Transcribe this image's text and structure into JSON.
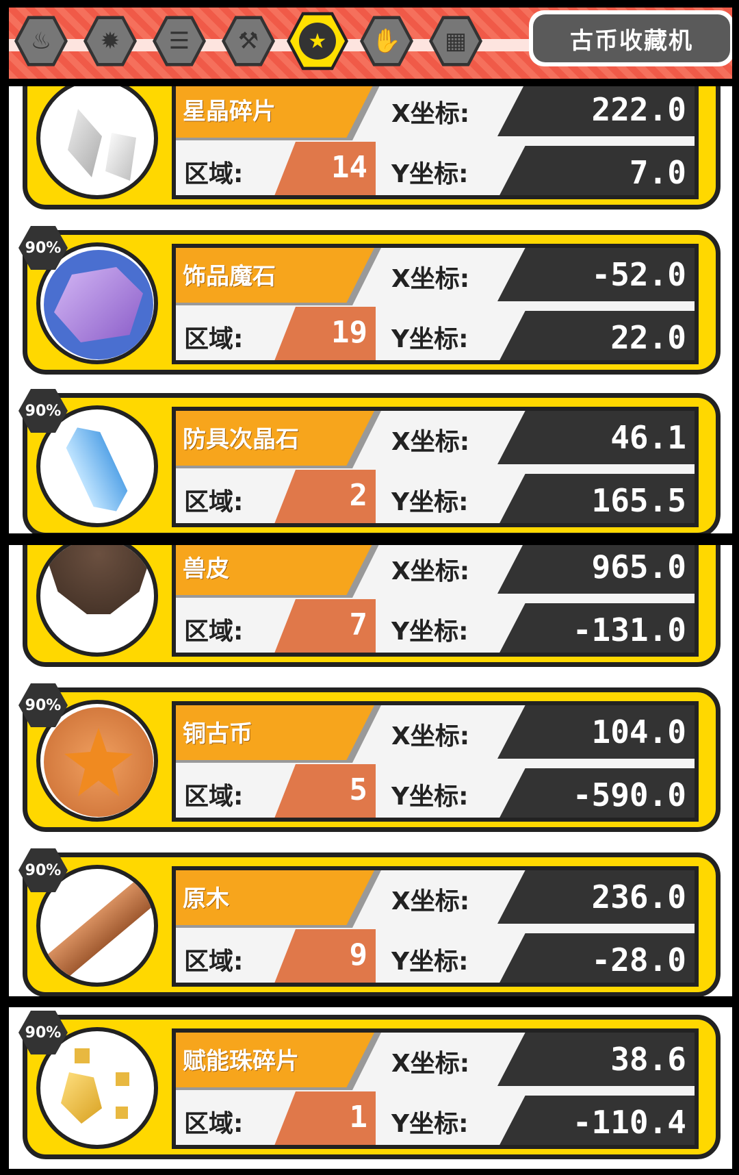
{
  "header": {
    "tabs": [
      {
        "icon": "flame-icon",
        "glyph": "♨",
        "active": false
      },
      {
        "icon": "fire-burst-icon",
        "glyph": "✹",
        "active": false
      },
      {
        "icon": "coins-icon",
        "glyph": "☰",
        "active": false
      },
      {
        "icon": "hammer-icon",
        "glyph": "⚒",
        "active": false
      },
      {
        "icon": "star-icon",
        "glyph": "★",
        "active": true
      },
      {
        "icon": "glove-icon",
        "glyph": "✋",
        "active": false
      },
      {
        "icon": "grid-icon",
        "glyph": "▦",
        "active": false
      }
    ],
    "title": "古币收藏机"
  },
  "labels": {
    "x": "X坐标:",
    "y": "Y坐标:",
    "region": "区域:"
  },
  "items": [
    {
      "name": "星晶碎片",
      "region": "14",
      "x": "222.0",
      "y": "7.0",
      "badge": "",
      "icon": "crystal-shards-icon"
    },
    {
      "name": "饰品魔石",
      "region": "19",
      "x": "-52.0",
      "y": "22.0",
      "badge": "90%",
      "icon": "purple-magic-stone-icon"
    },
    {
      "name": "防具次晶石",
      "region": "2",
      "x": "46.1",
      "y": "165.5",
      "badge": "90%",
      "icon": "blue-crystal-icon"
    },
    {
      "name": "兽皮",
      "region": "7",
      "x": "965.0",
      "y": "-131.0",
      "badge": "",
      "icon": "animal-hide-icon"
    },
    {
      "name": "铜古币",
      "region": "5",
      "x": "104.0",
      "y": "-590.0",
      "badge": "90%",
      "icon": "copper-coin-icon"
    },
    {
      "name": "原木",
      "region": "9",
      "x": "236.0",
      "y": "-28.0",
      "badge": "90%",
      "icon": "log-icon"
    },
    {
      "name": "赋能珠碎片",
      "region": "1",
      "x": "38.6",
      "y": "-110.4",
      "badge": "90%",
      "icon": "gold-fragments-icon"
    }
  ],
  "colors": {
    "card": "#ffd800",
    "name_bar": "#f7a51c",
    "region": "#e0784a",
    "value_box": "#333333",
    "header": "#f05a48"
  }
}
